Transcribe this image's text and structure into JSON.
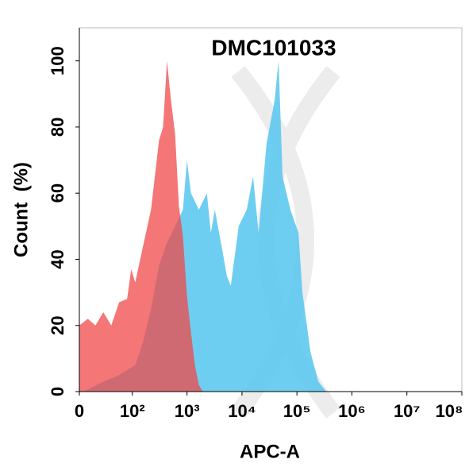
{
  "chart_data": {
    "type": "area",
    "title": "DMC101033",
    "x_label": "APC-A",
    "y_label": "Count  (%)",
    "xscale": "biexponential",
    "xlim": [
      0,
      100000000
    ],
    "xticks": [
      0,
      {
        "value": 100,
        "label": "10²"
      },
      {
        "value": 1000,
        "label": "10³"
      },
      {
        "value": 10000,
        "label": "10⁴"
      },
      {
        "value": 100000,
        "label": "10⁵"
      },
      {
        "value": 1000000,
        "label": "10⁶"
      },
      {
        "value": 10000000,
        "label": "10⁷"
      },
      {
        "value": 100000000,
        "label": "10⁸"
      }
    ],
    "ylim": [
      0,
      110
    ],
    "yticks": [
      0,
      20,
      40,
      60,
      80,
      100
    ],
    "series": [
      {
        "color": "#5ec9ef",
        "x": [
          4,
          26,
          56,
          113,
          158,
          221,
          309,
          432,
          605,
          843,
          997,
          1177,
          1643,
          2296,
          2710,
          3207,
          4475,
          5300,
          6250,
          8720,
          12180,
          15900,
          20100,
          28000,
          39100,
          46270,
          54700,
          76000,
          106500,
          125900,
          175800,
          245300,
          342000
        ],
        "values": [
          0,
          3,
          5,
          8,
          15,
          25,
          38,
          45,
          50,
          55,
          70,
          60,
          55,
          60,
          48,
          55,
          42,
          35,
          32,
          50,
          55,
          65,
          48,
          75,
          88,
          100,
          65,
          55,
          48,
          30,
          12,
          3,
          0
        ]
      },
      {
        "color": "#f04848",
        "x": [
          0,
          8,
          16,
          26,
          39,
          56,
          80,
          95,
          113,
          158,
          221,
          309,
          366,
          432,
          511,
          605,
          713,
          843,
          997,
          1177,
          1391,
          1643,
          1942
        ],
        "values": [
          20,
          22,
          20,
          24,
          20,
          27,
          28,
          37,
          33,
          44,
          55,
          76,
          80,
          100,
          88,
          78,
          56,
          47,
          29,
          18,
          8,
          2,
          0
        ]
      }
    ]
  }
}
